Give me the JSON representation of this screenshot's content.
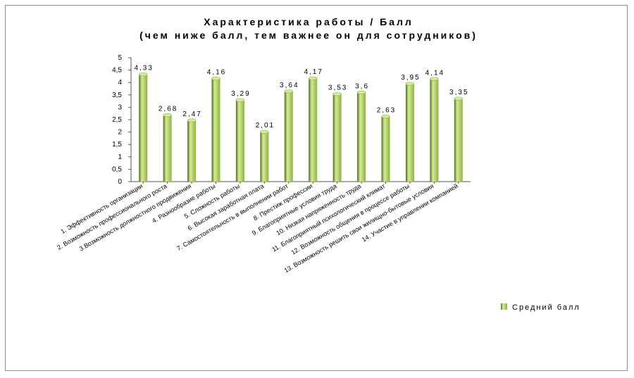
{
  "chart_data": {
    "type": "bar",
    "title": "Характеристика работы / Балл",
    "subtitle": "(чем ниже балл, тем важнее он для сотрудников)",
    "categories": [
      "1. Эффективность организации",
      "2. Возможность профессионального роста",
      "3.Возможность должностного продвижения",
      "4. Разнообразие работы",
      "5. Сложность работы",
      "6. Высокая заработная плата",
      "7. Самостоятельность в выполнении работ",
      "8. Престиж профессии",
      "9. Благоприятные условия труда",
      "10. Низкая напряженность труда",
      "11. Благоприятный психологический климат",
      "12. Возможность общения в процессе работы",
      "13. Возможность решить свои жилищно-бытовые условия",
      "14. Участие в управлении компанией"
    ],
    "series": [
      {
        "name": "Средний балл",
        "values": [
          4.33,
          2.68,
          2.47,
          4.16,
          3.29,
          2.01,
          3.64,
          4.17,
          3.53,
          3.6,
          2.63,
          3.95,
          4.14,
          3.35
        ]
      }
    ],
    "data_labels": [
      "4,33",
      "2,68",
      "2,47",
      "4,16",
      "3,29",
      "2,01",
      "3,64",
      "4,17",
      "3,53",
      "3,6",
      "2,63",
      "3,95",
      "4,14",
      "3,35"
    ],
    "y_ticks": [
      "0",
      "0,5",
      "1",
      "1,5",
      "2",
      "2,5",
      "3",
      "3,5",
      "4",
      "4,5",
      "5"
    ],
    "ylim": [
      0,
      5
    ],
    "grid": false,
    "legend_position": "right",
    "bar_color": "#8db53a",
    "bar_dark_color": "#4f6e15",
    "bar_light_color": "#d6ec9a"
  }
}
